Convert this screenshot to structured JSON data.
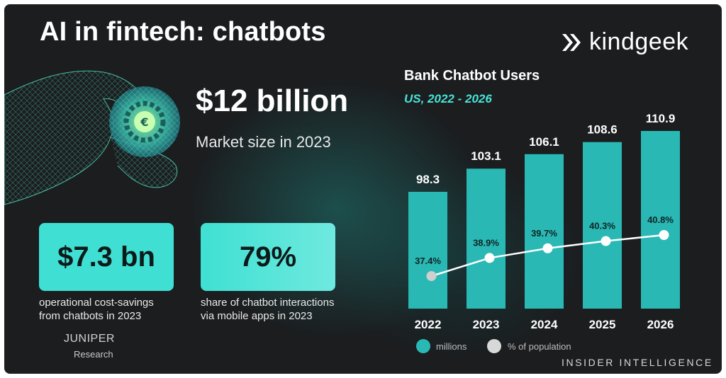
{
  "header": {
    "title": "AI in fintech: chatbots",
    "brand": "kindgeek"
  },
  "hero": {
    "value": "$12 billion",
    "caption": "Market size in 2023"
  },
  "stats": [
    {
      "value": "$7.3 bn",
      "caption_line1": "operational cost-savings",
      "caption_line2": "from chatbots in 2023"
    },
    {
      "value": "79%",
      "caption_line1": "share of chatbot interactions",
      "caption_line2": "via mobile apps in 2023"
    }
  ],
  "credits": {
    "juniper": "JUNIPER",
    "research": "Research",
    "source": "INSIDER INTELLIGENCE"
  },
  "colors": {
    "accent": "#3fe0d3",
    "bar": "#2ab8b5",
    "background": "#1b1d1f",
    "line": "#ffffff"
  },
  "chart_data": {
    "type": "bar",
    "title": "Bank Chatbot Users",
    "subtitle": "US, 2022 - 2026",
    "categories": [
      "2022",
      "2023",
      "2024",
      "2025",
      "2026"
    ],
    "series": [
      {
        "name": "millions",
        "type": "bar",
        "values": [
          98.3,
          103.1,
          106.1,
          108.6,
          110.9
        ]
      },
      {
        "name": "% of population",
        "type": "line",
        "values": [
          37.4,
          38.9,
          39.7,
          40.3,
          40.8
        ],
        "labels": [
          "37.4%",
          "38.9%",
          "39.7%",
          "40.3%",
          "40.8%"
        ]
      }
    ],
    "legend": [
      "millions",
      "% of population"
    ],
    "legend_position": "bottom-left",
    "grid": false
  }
}
